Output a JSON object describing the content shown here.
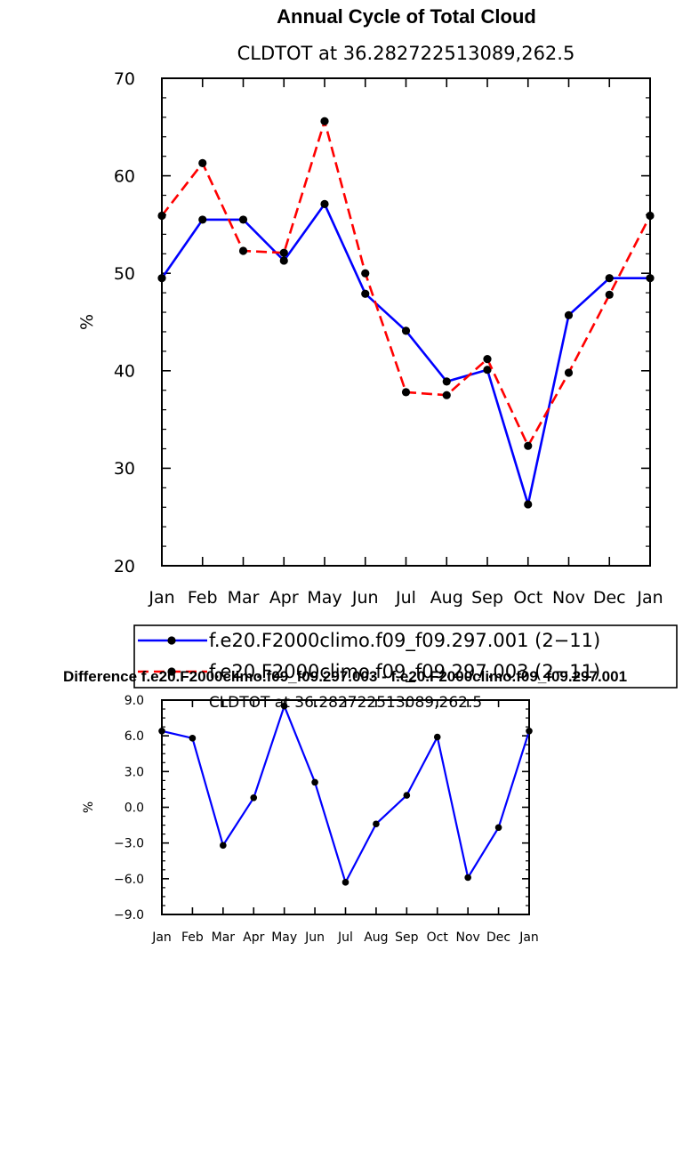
{
  "chart_data": [
    {
      "type": "line",
      "title": "Annual Cycle of Total Cloud",
      "subtitle": "CLDTOT at 36.282722513089,262.5",
      "xlabel": "",
      "ylabel": "%",
      "ylim": [
        20,
        70
      ],
      "yticks": [
        "20",
        "30",
        "40",
        "50",
        "60",
        "70"
      ],
      "categories": [
        "Jan",
        "Feb",
        "Mar",
        "Apr",
        "May",
        "Jun",
        "Jul",
        "Aug",
        "Sep",
        "Oct",
        "Nov",
        "Dec",
        "Jan"
      ],
      "grid": false,
      "legend_position": "bottom",
      "series": [
        {
          "name": "f.e20.F2000climo.f09_f09.297.001 (2−11)",
          "color": "#0000ff",
          "dash": "solid",
          "values": [
            49.5,
            55.5,
            55.5,
            51.3,
            57.1,
            47.9,
            44.1,
            38.9,
            40.1,
            26.3,
            45.7,
            49.5,
            49.5
          ]
        },
        {
          "name": "f.e20.F2000climo.f09_f09.297.003 (2−11)",
          "color": "#ff0000",
          "dash": "dashed",
          "values": [
            55.9,
            61.3,
            52.3,
            52.1,
            65.6,
            50.0,
            37.8,
            37.5,
            41.2,
            32.3,
            39.8,
            47.8,
            55.9
          ]
        }
      ]
    },
    {
      "type": "line",
      "title": "Difference f.e20.F2000climo.f09_f09.297.003 - f.e20.F2000climo.f09_f09.297.001",
      "subtitle": "CLDTOT at 36.282722513089,262.5",
      "xlabel": "",
      "ylabel": "%",
      "ylim": [
        -9.0,
        9.0
      ],
      "yticks": [
        "−9.0",
        "−6.0",
        "−3.0",
        "0.0",
        "3.0",
        "6.0",
        "9.0"
      ],
      "categories": [
        "Jan",
        "Feb",
        "Mar",
        "Apr",
        "May",
        "Jun",
        "Jul",
        "Aug",
        "Sep",
        "Oct",
        "Nov",
        "Dec",
        "Jan"
      ],
      "grid": false,
      "series": [
        {
          "color": "#0000ff",
          "dash": "solid",
          "values": [
            6.4,
            5.8,
            -3.2,
            0.8,
            8.5,
            2.1,
            -6.3,
            -1.4,
            1.0,
            5.9,
            -5.9,
            -1.7,
            6.4
          ]
        }
      ]
    }
  ]
}
